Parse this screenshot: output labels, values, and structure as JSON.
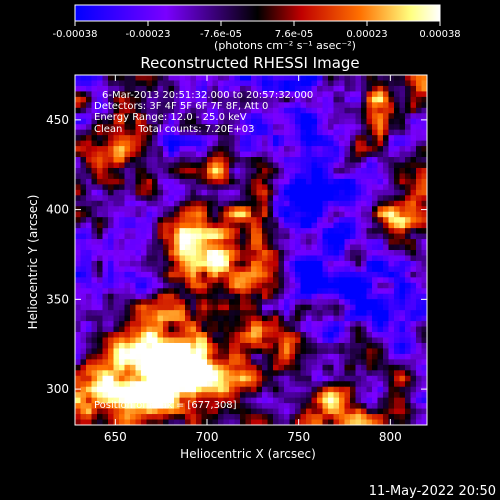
{
  "colorbar": {
    "ticks": [
      "-0.00038",
      "-0.00023",
      "-7.6e-05",
      "7.6e-05",
      "0.00023",
      "0.00038"
    ],
    "unit_label": "(photons cm⁻² s⁻¹ asec⁻²)",
    "range": [
      -0.00038,
      0.00038
    ],
    "colors": [
      "#0000ff",
      "#7a00ff",
      "#000000",
      "#c00000",
      "#ff7000",
      "#ffff80",
      "#ffffff"
    ]
  },
  "chart_data": {
    "type": "heatmap",
    "title": "Reconstructed RHESSI Image",
    "xlabel": "Heliocentric X (arcsec)",
    "ylabel": "Heliocentric Y (arcsec)",
    "xlim": [
      628,
      820
    ],
    "ylim": [
      280,
      475
    ],
    "x_ticks": [
      650,
      700,
      750,
      800
    ],
    "y_ticks": [
      300,
      350,
      400,
      450
    ],
    "info_lines": [
      "6-Mar-2013 20:51:32.000 to 20:57:32.000",
      "Detectors: 3F 4F 5F 6F 7F 8F, Att 0",
      "Energy Range: 12.0 - 25.0 keV",
      "Clean     Total counts: 7.20E+03"
    ],
    "peak_label": "Position of Peak = [677,308]",
    "peak": [
      677,
      308
    ],
    "bright_regions": [
      {
        "x": 677,
        "y": 308,
        "intensity": 1.0,
        "spread": 14
      },
      {
        "x": 662,
        "y": 312,
        "intensity": 0.75,
        "spread": 16
      },
      {
        "x": 700,
        "y": 318,
        "intensity": 0.65,
        "spread": 20
      },
      {
        "x": 640,
        "y": 295,
        "intensity": 0.7,
        "spread": 14
      },
      {
        "x": 720,
        "y": 365,
        "intensity": 0.7,
        "spread": 18
      },
      {
        "x": 690,
        "y": 385,
        "intensity": 0.55,
        "spread": 20
      },
      {
        "x": 650,
        "y": 430,
        "intensity": 0.7,
        "spread": 14
      },
      {
        "x": 720,
        "y": 420,
        "intensity": 0.5,
        "spread": 16
      },
      {
        "x": 775,
        "y": 300,
        "intensity": 0.6,
        "spread": 16
      },
      {
        "x": 805,
        "y": 395,
        "intensity": 0.6,
        "spread": 14
      },
      {
        "x": 800,
        "y": 455,
        "intensity": 0.5,
        "spread": 14
      },
      {
        "x": 740,
        "y": 330,
        "intensity": 0.45,
        "spread": 14
      }
    ],
    "dim_regions": [
      {
        "x": 760,
        "y": 405,
        "intensity": -0.6,
        "spread": 25
      },
      {
        "x": 655,
        "y": 380,
        "intensity": -0.5,
        "spread": 18
      },
      {
        "x": 740,
        "y": 455,
        "intensity": -0.55,
        "spread": 22
      },
      {
        "x": 800,
        "y": 345,
        "intensity": -0.5,
        "spread": 18
      },
      {
        "x": 765,
        "y": 355,
        "intensity": -0.45,
        "spread": 16
      },
      {
        "x": 690,
        "y": 460,
        "intensity": -0.4,
        "spread": 16
      }
    ]
  },
  "timestamp": "11-May-2022 20:50"
}
